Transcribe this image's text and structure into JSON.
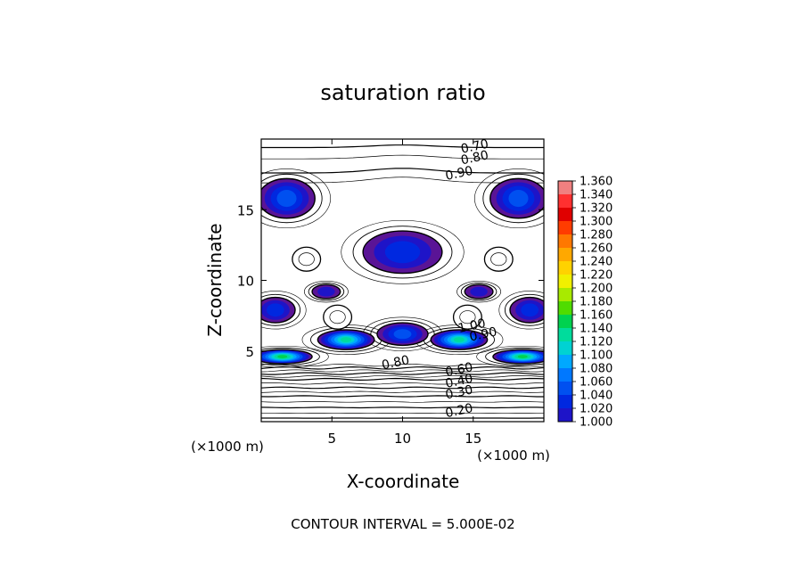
{
  "chart_data": {
    "type": "heatmap",
    "title": "saturation ratio",
    "xlabel": "X-coordinate",
    "ylabel": "Z-coordinate",
    "xlim": [
      0,
      20
    ],
    "ylim": [
      0,
      20
    ],
    "x_ticks": [
      "5",
      "10",
      "15"
    ],
    "y_ticks": [
      "5",
      "10",
      "15"
    ],
    "x_tick_values": [
      5,
      10,
      15
    ],
    "y_tick_values": [
      5,
      10,
      15
    ],
    "x_unit": "(×1000 m)",
    "y_unit": "(×1000 m)",
    "footer": "CONTOUR INTERVAL = 5.000E-02",
    "colorbar": {
      "labels": [
        "1.360",
        "1.340",
        "1.320",
        "1.300",
        "1.280",
        "1.260",
        "1.240",
        "1.220",
        "1.200",
        "1.180",
        "1.160",
        "1.140",
        "1.120",
        "1.100",
        "1.080",
        "1.060",
        "1.040",
        "1.020",
        "1.000"
      ],
      "colors": [
        "#f08080",
        "#ff3030",
        "#e00000",
        "#ff3c00",
        "#ff7800",
        "#ffa800",
        "#ffd200",
        "#f0f000",
        "#a8ea00",
        "#50dc00",
        "#00d250",
        "#00dc9c",
        "#00d2d2",
        "#00a8ff",
        "#0078ff",
        "#0050f0",
        "#0028e0",
        "#1e14c8",
        "#5a1496"
      ]
    },
    "contour_labels": [
      {
        "text": "0.70",
        "x": 14.2,
        "z": 19.0
      },
      {
        "text": "0.80",
        "x": 14.2,
        "z": 18.2
      },
      {
        "text": "0.90",
        "x": 13.1,
        "z": 17.1
      },
      {
        "text": "1.00",
        "x": 14.0,
        "z": 6.3
      },
      {
        "text": "0.90",
        "x": 14.8,
        "z": 5.7
      },
      {
        "text": "0.80",
        "x": 8.6,
        "z": 3.7
      },
      {
        "text": "0.60",
        "x": 13.1,
        "z": 3.2
      },
      {
        "text": "0.40",
        "x": 13.1,
        "z": 2.4
      },
      {
        "text": "0.30",
        "x": 13.1,
        "z": 1.6
      },
      {
        "text": "0.20",
        "x": 13.1,
        "z": 0.3
      }
    ],
    "filled_regions": [
      {
        "cx": 1.8,
        "cz": 15.8,
        "rx": 2.0,
        "rz": 1.4,
        "peak": 1.05
      },
      {
        "cx": 18.2,
        "cz": 15.8,
        "rx": 2.0,
        "rz": 1.4,
        "peak": 1.05
      },
      {
        "cx": 10.0,
        "cz": 12.0,
        "rx": 2.8,
        "rz": 1.5,
        "peak": 1.04
      },
      {
        "cx": 1.0,
        "cz": 7.9,
        "rx": 1.4,
        "rz": 0.9,
        "peak": 1.04
      },
      {
        "cx": 19.0,
        "cz": 7.9,
        "rx": 1.4,
        "rz": 0.9,
        "peak": 1.04
      },
      {
        "cx": 4.6,
        "cz": 9.2,
        "rx": 1.0,
        "rz": 0.5,
        "peak": 1.01
      },
      {
        "cx": 15.4,
        "cz": 9.2,
        "rx": 1.0,
        "rz": 0.5,
        "peak": 1.01
      },
      {
        "cx": 10.0,
        "cz": 6.2,
        "rx": 1.8,
        "rz": 0.8,
        "peak": 1.06
      },
      {
        "cx": 6.0,
        "cz": 5.8,
        "rx": 2.0,
        "rz": 0.7,
        "peak": 1.14
      },
      {
        "cx": 14.0,
        "cz": 5.8,
        "rx": 2.0,
        "rz": 0.7,
        "peak": 1.14
      },
      {
        "cx": 1.5,
        "cz": 4.6,
        "rx": 2.1,
        "rz": 0.5,
        "peak": 1.16
      },
      {
        "cx": 18.5,
        "cz": 4.6,
        "rx": 2.1,
        "rz": 0.5,
        "peak": 1.16
      }
    ],
    "grid": false,
    "legend": "colorbar-right"
  }
}
